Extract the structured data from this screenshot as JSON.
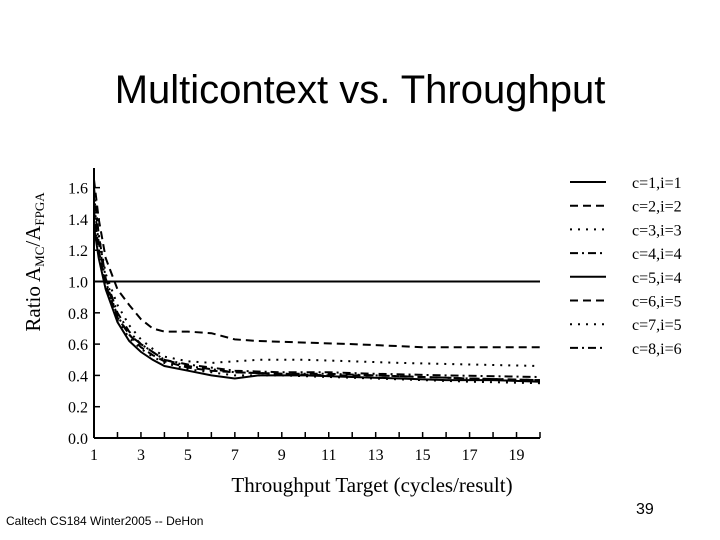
{
  "slide": {
    "title": "Multicontext vs. Throughput",
    "footer": "Caltech CS184 Winter2005 -- DeHon",
    "page_number": "39"
  },
  "chart_data": {
    "type": "line",
    "title": "",
    "xlabel": "Throughput Target (cycles/result)",
    "ylabel": {
      "prefix": "Ratio A",
      "sub1": "MC",
      "mid": "/A",
      "sub2": "FPGA"
    },
    "xlim": [
      1,
      20
    ],
    "ylim": [
      0,
      1.7
    ],
    "xticks": [
      1,
      3,
      5,
      7,
      9,
      11,
      13,
      15,
      17,
      19
    ],
    "yticks": [
      0.0,
      0.2,
      0.4,
      0.6,
      0.8,
      1.0,
      1.2,
      1.4,
      1.6
    ],
    "ytick_labels": [
      "0.0",
      "0.2",
      "0.4",
      "0.6",
      "0.8",
      "1.0",
      "1.2",
      "1.4",
      "1.6"
    ],
    "legend_position": "top-right",
    "grid": false,
    "series": [
      {
        "name": "c=1,i=1",
        "dash": "solid",
        "width": 2,
        "x": [
          1,
          20
        ],
        "y": [
          1.0,
          1.0
        ]
      },
      {
        "name": "c=2,i=2",
        "dash": "dash",
        "width": 2,
        "x": [
          1,
          1.2,
          1.5,
          2,
          2.5,
          3,
          3.5,
          4,
          5,
          6,
          7,
          8,
          10,
          12,
          15,
          20
        ],
        "y": [
          1.65,
          1.4,
          1.15,
          0.95,
          0.85,
          0.76,
          0.7,
          0.68,
          0.68,
          0.67,
          0.63,
          0.62,
          0.61,
          0.6,
          0.58,
          0.58
        ]
      },
      {
        "name": "c=3,i=3",
        "dash": "dot",
        "width": 2,
        "x": [
          1,
          1.2,
          1.5,
          2,
          2.5,
          3,
          3.5,
          4,
          5,
          6,
          8,
          10,
          12,
          14,
          17,
          20
        ],
        "y": [
          1.55,
          1.3,
          1.05,
          0.85,
          0.72,
          0.63,
          0.57,
          0.52,
          0.49,
          0.48,
          0.5,
          0.5,
          0.49,
          0.48,
          0.47,
          0.46
        ]
      },
      {
        "name": "c=4,i=4",
        "dash": "dashdot",
        "width": 2,
        "x": [
          1,
          1.2,
          1.5,
          2,
          2.5,
          3,
          3.5,
          4,
          5,
          6,
          7,
          9,
          11,
          13,
          16,
          20
        ],
        "y": [
          1.5,
          1.25,
          1.0,
          0.78,
          0.66,
          0.6,
          0.55,
          0.5,
          0.47,
          0.45,
          0.43,
          0.42,
          0.42,
          0.41,
          0.4,
          0.39
        ]
      },
      {
        "name": "c=5,i=4",
        "dash": "solid",
        "width": 2,
        "x": [
          1,
          1.2,
          1.5,
          2,
          2.5,
          3,
          3.5,
          4,
          5,
          6,
          7,
          8,
          10,
          12,
          14,
          16,
          18,
          20
        ],
        "y": [
          1.35,
          1.15,
          0.95,
          0.74,
          0.62,
          0.55,
          0.5,
          0.46,
          0.43,
          0.4,
          0.38,
          0.4,
          0.4,
          0.39,
          0.38,
          0.37,
          0.37,
          0.36
        ]
      },
      {
        "name": "c=6,i=5",
        "dash": "dash",
        "width": 2,
        "x": [
          1,
          1.2,
          1.5,
          2,
          2.5,
          3,
          3.5,
          4,
          5,
          6,
          7,
          9,
          11,
          13,
          15,
          17,
          20
        ],
        "y": [
          1.45,
          1.2,
          0.98,
          0.77,
          0.66,
          0.58,
          0.53,
          0.49,
          0.45,
          0.43,
          0.42,
          0.41,
          0.4,
          0.4,
          0.39,
          0.38,
          0.37
        ]
      },
      {
        "name": "c=7,i=5",
        "dash": "dot",
        "width": 2,
        "x": [
          1,
          1.2,
          1.5,
          2,
          2.5,
          3,
          3.5,
          4,
          5,
          6,
          7,
          9,
          11,
          13,
          15,
          17,
          20
        ],
        "y": [
          1.4,
          1.18,
          0.96,
          0.75,
          0.64,
          0.57,
          0.52,
          0.48,
          0.44,
          0.42,
          0.4,
          0.4,
          0.39,
          0.38,
          0.37,
          0.36,
          0.35
        ]
      },
      {
        "name": "c=8,i=6",
        "dash": "dashdot",
        "width": 2,
        "x": [
          1,
          1.2,
          1.5,
          2,
          2.5,
          3,
          3.5,
          4,
          5,
          6,
          7,
          9,
          11,
          13,
          15,
          17,
          20
        ],
        "y": [
          1.6,
          1.3,
          1.02,
          0.8,
          0.68,
          0.6,
          0.55,
          0.5,
          0.46,
          0.44,
          0.42,
          0.41,
          0.41,
          0.4,
          0.39,
          0.38,
          0.37
        ]
      }
    ]
  }
}
